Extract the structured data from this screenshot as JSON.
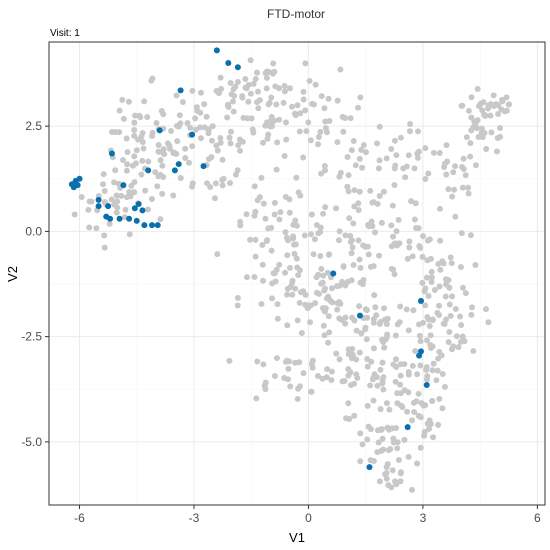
{
  "chart_data": {
    "type": "scatter",
    "title": "FTD-motor",
    "subtitle": "Visit: 1",
    "xlabel": "V1",
    "ylabel": "V2",
    "xlim": [
      -6.8,
      6.2
    ],
    "ylim": [
      -6.5,
      4.5
    ],
    "x_ticks": [
      -6,
      -3,
      0,
      3,
      6
    ],
    "x_tick_labels": [
      "-6",
      "-3",
      "0",
      "3",
      "6"
    ],
    "y_ticks": [
      2.5,
      0,
      -2.5,
      -5
    ],
    "y_tick_labels": [
      "2.5",
      "0.0",
      "-2.5",
      "-5.0"
    ],
    "grid": true,
    "legend": "none",
    "colors": {
      "background_points": "#c8c8c8",
      "highlight_points": "#0a6fad",
      "panel_border": "#333333",
      "grid_major": "#ebebeb",
      "grid_minor": "#f5f5f5"
    },
    "background_clusters": [
      [
        -5.2,
        0.6,
        0.6,
        0.5,
        30
      ],
      [
        -4.2,
        1.2,
        0.6,
        0.6,
        30
      ],
      [
        -4.5,
        2.0,
        0.8,
        0.6,
        35
      ],
      [
        -3.5,
        2.6,
        0.7,
        0.6,
        30
      ],
      [
        -2.5,
        1.8,
        0.8,
        0.8,
        35
      ],
      [
        -2.0,
        3.2,
        0.8,
        0.5,
        35
      ],
      [
        -1.0,
        2.6,
        0.7,
        0.7,
        30
      ],
      [
        -1.0,
        3.6,
        0.6,
        0.3,
        20
      ],
      [
        0.3,
        2.8,
        0.8,
        0.6,
        30
      ],
      [
        1.3,
        1.5,
        0.8,
        0.6,
        30
      ],
      [
        2.5,
        1.5,
        0.8,
        0.6,
        30
      ],
      [
        4.8,
        3.0,
        0.5,
        0.3,
        25
      ],
      [
        4.6,
        2.4,
        0.5,
        0.4,
        25
      ],
      [
        3.8,
        1.2,
        0.5,
        0.6,
        20
      ],
      [
        -1.0,
        0.0,
        0.7,
        0.8,
        35
      ],
      [
        0.3,
        -0.2,
        0.9,
        0.8,
        45
      ],
      [
        1.5,
        -0.6,
        0.7,
        0.7,
        35
      ],
      [
        2.6,
        -0.4,
        0.6,
        0.6,
        30
      ],
      [
        3.5,
        -1.0,
        0.5,
        0.6,
        25
      ],
      [
        -0.6,
        -1.6,
        0.8,
        0.6,
        30
      ],
      [
        0.6,
        -1.8,
        0.9,
        0.6,
        35
      ],
      [
        1.8,
        -2.2,
        0.7,
        0.6,
        30
      ],
      [
        3.1,
        -2.2,
        0.5,
        0.6,
        25
      ],
      [
        4.0,
        -2.2,
        0.4,
        0.6,
        20
      ],
      [
        -0.5,
        -3.4,
        0.8,
        0.4,
        30
      ],
      [
        1.0,
        -3.3,
        0.8,
        0.5,
        30
      ],
      [
        2.1,
        -3.6,
        0.6,
        0.5,
        25
      ],
      [
        3.0,
        -3.4,
        0.4,
        0.6,
        20
      ],
      [
        1.8,
        -4.6,
        0.5,
        0.5,
        25
      ],
      [
        3.1,
        -4.5,
        0.4,
        0.6,
        20
      ],
      [
        2.2,
        -5.5,
        0.5,
        0.4,
        20
      ],
      [
        2.2,
        -6.0,
        0.3,
        0.2,
        10
      ]
    ],
    "highlight_points": [
      [
        -6.1,
        1.2
      ],
      [
        -6.15,
        1.05
      ],
      [
        -6.05,
        1.1
      ],
      [
        -6.0,
        1.25
      ],
      [
        -6.2,
        1.12
      ],
      [
        -5.5,
        0.75
      ],
      [
        -5.5,
        0.6
      ],
      [
        -5.25,
        0.6
      ],
      [
        -5.3,
        0.35
      ],
      [
        -5.2,
        0.3
      ],
      [
        -4.95,
        0.3
      ],
      [
        -4.7,
        0.3
      ],
      [
        -4.55,
        0.55
      ],
      [
        -4.45,
        0.65
      ],
      [
        -4.35,
        0.5
      ],
      [
        -4.5,
        0.25
      ],
      [
        -4.3,
        0.15
      ],
      [
        -4.1,
        0.15
      ],
      [
        -3.95,
        0.15
      ],
      [
        -5.15,
        1.85
      ],
      [
        -4.85,
        1.1
      ],
      [
        -4.2,
        1.45
      ],
      [
        -3.9,
        2.4
      ],
      [
        -3.5,
        1.45
      ],
      [
        -3.4,
        1.6
      ],
      [
        -3.05,
        2.3
      ],
      [
        -2.75,
        1.55
      ],
      [
        -3.35,
        3.35
      ],
      [
        -2.4,
        4.3
      ],
      [
        -2.1,
        4.0
      ],
      [
        -1.85,
        3.9
      ],
      [
        0.65,
        -1.0
      ],
      [
        1.35,
        -2.0
      ],
      [
        2.95,
        -1.65
      ],
      [
        2.95,
        -2.85
      ],
      [
        2.9,
        -2.95
      ],
      [
        3.1,
        -3.65
      ],
      [
        2.6,
        -4.65
      ],
      [
        1.6,
        -5.6
      ]
    ]
  }
}
